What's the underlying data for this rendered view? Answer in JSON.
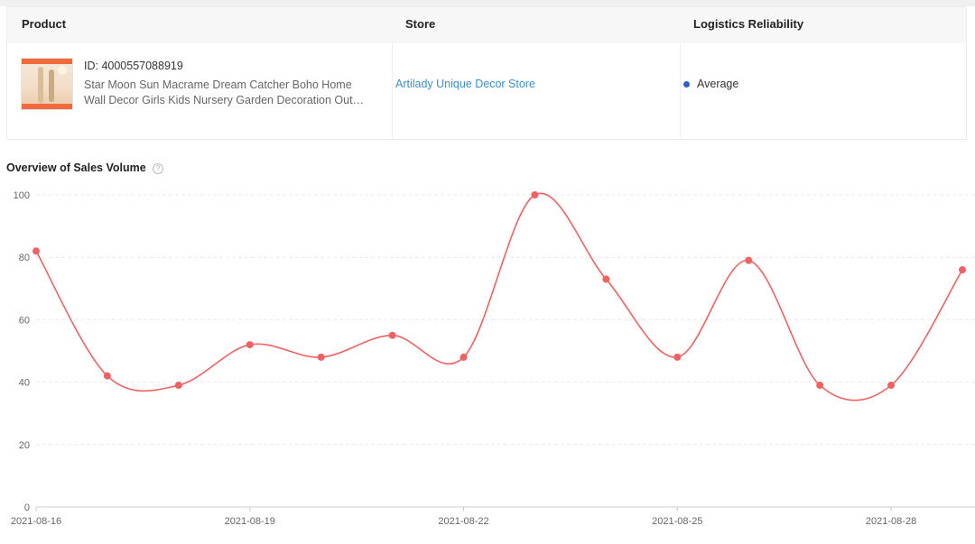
{
  "table": {
    "headers": {
      "product": "Product",
      "store": "Store",
      "logistics": "Logistics Reliability"
    },
    "row": {
      "product_id": "ID: 4000557088919",
      "product_name_line1": "Star Moon Sun Macrame Dream Catcher Boho Home",
      "product_name_line2": "Wall Decor Girls Kids Nursery Garden Decoration Out…",
      "thumbnail_icon": "product-thumbnail",
      "store_name": "Artilady Unique Decor Store",
      "logistics_reliability": "Average",
      "logistics_dot_color": "#2a62c9"
    }
  },
  "overview": {
    "title": "Overview of Sales Volume",
    "help_icon": "question-circle-icon",
    "help_glyph": "?"
  },
  "chart_data": {
    "type": "line",
    "title": "Overview of Sales Volume",
    "x": [
      "2021-08-16",
      "2021-08-17",
      "2021-08-18",
      "2021-08-19",
      "2021-08-20",
      "2021-08-21",
      "2021-08-22",
      "2021-08-23",
      "2021-08-24",
      "2021-08-25",
      "2021-08-26",
      "2021-08-27",
      "2021-08-28",
      "2021-08-29"
    ],
    "x_tick_labels": [
      "2021-08-16",
      "2021-08-19",
      "2021-08-22",
      "2021-08-25",
      "2021-08-28"
    ],
    "series": [
      {
        "values": [
          82,
          42,
          39,
          52,
          48,
          55,
          48,
          100,
          73,
          48,
          79,
          39,
          39,
          76
        ]
      }
    ],
    "y_ticks": [
      0,
      20,
      40,
      60,
      80,
      100
    ],
    "ylim": [
      0,
      100
    ],
    "grid": true,
    "line_color": "#f06262",
    "smooth": true
  }
}
